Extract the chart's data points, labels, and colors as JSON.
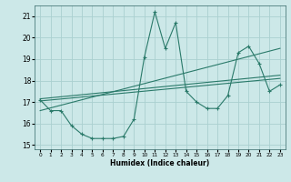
{
  "xlabel": "Humidex (Indice chaleur)",
  "ylabel": "",
  "bg_color": "#cce8e8",
  "grid_color": "#aad0d0",
  "line_color": "#2a7a6a",
  "xlim": [
    -0.5,
    23.5
  ],
  "ylim": [
    14.8,
    21.5
  ],
  "xticks": [
    0,
    1,
    2,
    3,
    4,
    5,
    6,
    7,
    8,
    9,
    10,
    11,
    12,
    13,
    14,
    15,
    16,
    17,
    18,
    19,
    20,
    21,
    22,
    23
  ],
  "yticks": [
    15,
    16,
    17,
    18,
    19,
    20,
    21
  ],
  "main_series_x": [
    0,
    1,
    2,
    3,
    4,
    5,
    6,
    7,
    8,
    9,
    10,
    11,
    12,
    13,
    14,
    15,
    16,
    17,
    18,
    19,
    20,
    21,
    22,
    23
  ],
  "main_series_y": [
    17.1,
    16.6,
    16.6,
    15.9,
    15.5,
    15.3,
    15.3,
    15.3,
    15.4,
    16.2,
    19.1,
    21.2,
    19.5,
    20.7,
    17.5,
    17.0,
    16.7,
    16.7,
    17.3,
    19.3,
    19.6,
    18.8,
    17.5,
    17.8
  ],
  "trend1_x": [
    0,
    23
  ],
  "trend1_y": [
    17.05,
    18.1
  ],
  "trend2_x": [
    0,
    23
  ],
  "trend2_y": [
    17.15,
    18.25
  ],
  "trend3_x": [
    0,
    23
  ],
  "trend3_y": [
    16.6,
    19.5
  ]
}
